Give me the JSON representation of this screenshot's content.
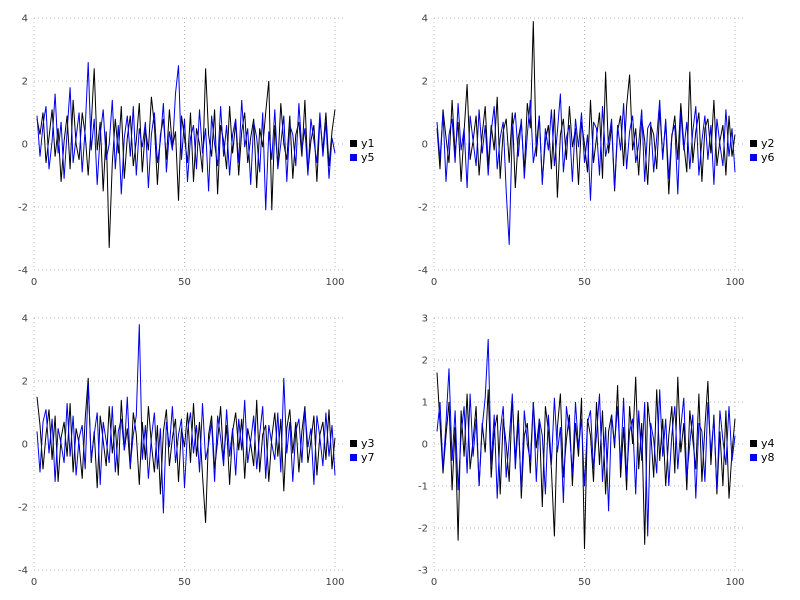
{
  "style": {
    "background": "#ffffff",
    "grid_color": "#b8b8b8",
    "tick_label_color": "#404040",
    "black_series_color": "#000000",
    "blue_series_color": "#0000ee"
  },
  "chart_data": [
    {
      "type": "line",
      "title": "",
      "xlabel": "",
      "ylabel": "",
      "xlim": [
        0,
        103
      ],
      "ylim": [
        -4,
        4
      ],
      "xticks": [
        0,
        50,
        100
      ],
      "yticks": [
        -4,
        -2,
        0,
        2,
        4
      ],
      "grid": "dotted",
      "legend_position": "right",
      "x_start": 1,
      "series": [
        {
          "name": "y1",
          "color": "#000000",
          "values": [
            0.8,
            0.3,
            1.0,
            -0.6,
            0.2,
            1.1,
            -0.4,
            0.5,
            -1.2,
            0.1,
            0.9,
            -0.8,
            1.4,
            0.0,
            -0.5,
            1.0,
            0.3,
            -1.0,
            0.6,
            2.4,
            -0.2,
            0.7,
            -1.5,
            0.4,
            -3.3,
            -0.6,
            0.8,
            -0.3,
            1.2,
            -1.1,
            0.2,
            0.9,
            -0.7,
            0.1,
            1.3,
            -0.9,
            0.5,
            -0.2,
            1.5,
            0.6,
            -1.3,
            0.3,
            0.8,
            -0.5,
            1.1,
            -0.1,
            0.4,
            -1.8,
            0.9,
            0.2,
            -0.6,
            1.0,
            -1.2,
            0.5,
            0.0,
            -0.9,
            2.4,
            0.3,
            -0.4,
            1.1,
            -1.6,
            0.6,
            0.1,
            -0.8,
            1.2,
            -0.3,
            0.7,
            -1.0,
            0.4,
            1.0,
            -0.6,
            0.2,
            0.8,
            -1.4,
            0.5,
            -0.1,
            1.0,
            2.0,
            -2.1,
            0.6,
            -0.7,
            1.3,
            0.0,
            -0.5,
            0.9,
            -1.1,
            0.3,
            0.7,
            -0.4,
            1.4,
            -0.9,
            0.1,
            0.6,
            -1.2,
            0.8,
            -0.2,
            1.0,
            -0.7,
            0.4,
            1.1
          ]
        },
        {
          "name": "y5",
          "color": "#0000ee",
          "values": [
            0.9,
            -0.4,
            0.6,
            1.2,
            -0.8,
            0.1,
            1.6,
            -0.3,
            0.7,
            -1.1,
            0.4,
            1.8,
            -0.6,
            0.2,
            1.0,
            -0.9,
            0.5,
            2.6,
            -0.2,
            0.8,
            -1.3,
            0.3,
            1.1,
            -0.5,
            0.0,
            1.4,
            -0.8,
            0.6,
            -1.6,
            0.2,
            0.9,
            -0.4,
            1.2,
            -1.0,
            0.5,
            -0.1,
            0.7,
            -1.4,
            0.3,
            1.0,
            -0.6,
            0.1,
            1.3,
            -0.9,
            0.4,
            -0.2,
            1.6,
            2.5,
            -0.5,
            0.8,
            -1.2,
            0.2,
            0.6,
            -0.8,
            1.1,
            -0.3,
            0.5,
            -1.5,
            0.9,
            0.0,
            -0.7,
            1.2,
            -0.4,
            0.6,
            -1.0,
            0.3,
            0.8,
            -0.6,
            1.4,
            -0.1,
            0.5,
            -1.3,
            0.7,
            0.2,
            -0.9,
            1.0,
            -2.1,
            0.4,
            -0.5,
            1.1,
            -0.8,
            0.0,
            0.9,
            -1.2,
            0.6,
            0.3,
            -0.7,
            1.3,
            -0.2,
            0.5,
            -1.0,
            0.8,
            0.1,
            -0.6,
            1.0,
            -0.4,
            0.7,
            -1.1,
            0.2,
            -0.3
          ]
        }
      ]
    },
    {
      "type": "line",
      "title": "",
      "xlabel": "",
      "ylabel": "",
      "xlim": [
        0,
        103
      ],
      "ylim": [
        -4,
        4
      ],
      "xticks": [
        0,
        50,
        100
      ],
      "yticks": [
        -4,
        -2,
        0,
        2,
        4
      ],
      "grid": "dotted",
      "legend_position": "right",
      "x_start": 1,
      "series": [
        {
          "name": "y2",
          "color": "#000000",
          "values": [
            0.5,
            -0.8,
            1.1,
            0.2,
            -0.6,
            1.4,
            -0.3,
            0.7,
            -1.2,
            0.4,
            1.9,
            -0.5,
            0.1,
            0.9,
            -1.0,
            0.3,
            1.2,
            -0.7,
            0.6,
            -0.2,
            1.5,
            -1.1,
            0.4,
            0.8,
            -0.6,
            1.0,
            -1.4,
            0.2,
            0.7,
            -0.9,
            1.3,
            0.5,
            3.9,
            -0.4,
            0.9,
            -1.2,
            0.1,
            0.6,
            -0.8,
            1.1,
            -1.7,
            0.3,
            0.8,
            -0.5,
            1.2,
            -0.1,
            0.5,
            -1.3,
            0.7,
            0.0,
            -0.9,
            1.4,
            -0.6,
            0.2,
            1.0,
            -1.1,
            2.3,
            -0.3,
            0.6,
            -1.5,
            0.4,
            0.9,
            -0.7,
            1.2,
            2.2,
            -0.2,
            0.5,
            -1.0,
            0.8,
            0.1,
            -1.3,
            0.6,
            0.3,
            -0.8,
            1.1,
            -0.4,
            0.7,
            -1.6,
            0.2,
            0.9,
            -0.5,
            1.3,
            0.0,
            -0.9,
            2.3,
            -0.6,
            0.4,
            1.0,
            -1.2,
            0.5,
            0.8,
            -0.3,
            1.4,
            -0.7,
            0.1,
            0.6,
            -1.0,
            0.9,
            -0.4,
            0.3
          ]
        },
        {
          "name": "y6",
          "color": "#0000ee",
          "values": [
            0.7,
            -0.5,
            1.0,
            -1.2,
            0.3,
            0.8,
            -0.6,
            1.3,
            -0.2,
            0.5,
            -1.4,
            0.9,
            0.1,
            -0.7,
            1.1,
            -0.3,
            0.6,
            -1.0,
            0.4,
            1.2,
            -0.8,
            0.2,
            0.7,
            -1.5,
            -3.2,
            0.5,
            1.0,
            -0.4,
            0.8,
            -1.1,
            0.3,
            1.4,
            -0.6,
            0.0,
            0.9,
            -1.3,
            0.5,
            -0.2,
            1.1,
            -0.7,
            0.4,
            1.6,
            -0.9,
            0.2,
            0.6,
            -1.2,
            0.8,
            -0.1,
            1.0,
            -0.6,
            0.3,
            -1.8,
            0.7,
            0.5,
            -1.0,
            1.2,
            -0.4,
            0.1,
            0.8,
            -1.4,
            0.6,
            -0.2,
            1.3,
            -0.8,
            0.4,
            0.9,
            -0.6,
            0.0,
            1.1,
            -1.2,
            0.5,
            0.7,
            -0.9,
            0.2,
            1.4,
            -0.5,
            0.8,
            -1.1,
            0.3,
            0.6,
            -1.6,
            1.0,
            -0.2,
            0.7,
            -0.8,
            0.4,
            1.2,
            -1.0,
            0.1,
            0.9,
            -0.5,
            0.6,
            -1.3,
            0.8,
            0.0,
            -0.7,
            1.1,
            -0.4,
            0.5,
            -0.9
          ]
        }
      ]
    },
    {
      "type": "line",
      "title": "",
      "xlabel": "",
      "ylabel": "",
      "xlim": [
        0,
        103
      ],
      "ylim": [
        -4,
        4
      ],
      "xticks": [
        0,
        50,
        100
      ],
      "yticks": [
        -4,
        -2,
        0,
        2,
        4
      ],
      "grid": "dotted",
      "legend_position": "right",
      "x_start": 1,
      "series": [
        {
          "name": "y3",
          "color": "#000000",
          "values": [
            1.5,
            0.6,
            -0.8,
            0.3,
            1.1,
            -0.5,
            0.9,
            -1.2,
            0.2,
            0.7,
            -0.4,
            1.3,
            -0.9,
            0.5,
            0.0,
            -1.1,
            0.8,
            2.1,
            -0.6,
            0.4,
            -1.4,
            0.9,
            0.1,
            -0.7,
            1.2,
            -0.3,
            0.6,
            -1.0,
            1.4,
            -0.2,
            0.5,
            -0.8,
            1.0,
            0.3,
            -1.3,
            0.7,
            -0.5,
            1.2,
            0.0,
            -0.9,
            0.6,
            -1.6,
            0.4,
            1.1,
            -0.7,
            0.2,
            0.8,
            -1.2,
            0.5,
            -0.1,
            1.0,
            -0.6,
            1.3,
            -0.4,
            0.7,
            -1.0,
            -2.5,
            0.3,
            0.9,
            -0.8,
            0.1,
            1.2,
            -0.5,
            0.6,
            -1.3,
            0.4,
            1.0,
            -0.2,
            0.8,
            -1.1,
            0.5,
            0.0,
            -0.7,
            1.4,
            -0.9,
            0.3,
            0.6,
            -1.2,
            0.2,
            1.0,
            -0.4,
            0.8,
            -1.5,
            0.5,
            1.1,
            -0.3,
            0.7,
            -0.9,
            0.4,
            1.2,
            -0.6,
            0.1,
            0.9,
            -1.0,
            0.3,
            0.7,
            -0.5,
            1.1,
            -0.8,
            0.2
          ]
        },
        {
          "name": "y7",
          "color": "#0000ee",
          "values": [
            0.4,
            -0.9,
            0.7,
            1.1,
            -0.3,
            0.8,
            -1.2,
            0.5,
            0.0,
            -0.6,
            1.3,
            -0.4,
            0.9,
            -1.0,
            0.2,
            0.6,
            -0.8,
            1.9,
            -0.5,
            0.3,
            1.0,
            -1.3,
            0.7,
            0.1,
            -0.6,
            1.2,
            -0.9,
            0.4,
            0.8,
            -0.2,
            1.5,
            -0.7,
            0.3,
            0.9,
            3.8,
            -0.5,
            0.6,
            -1.1,
            0.2,
            1.0,
            -0.8,
            0.5,
            -2.2,
            0.7,
            -0.1,
            1.2,
            -0.6,
            0.3,
            0.8,
            -1.4,
            0.4,
            1.0,
            -0.3,
            0.6,
            -0.9,
            1.3,
            -0.5,
            0.0,
            0.7,
            -1.2,
            0.9,
            0.2,
            -0.7,
            1.1,
            -0.4,
            0.5,
            -1.0,
            0.8,
            -0.2,
            1.4,
            -0.6,
            0.1,
            0.9,
            -0.8,
            0.3,
            1.2,
            -1.1,
            0.6,
            0.0,
            -0.5,
            1.0,
            -0.9,
            2.1,
            -0.3,
            0.7,
            -1.2,
            0.4,
            0.8,
            -0.6,
            1.1,
            -0.1,
            0.5,
            -1.3,
            0.9,
            0.2,
            -0.7,
            1.0,
            -0.4,
            0.6,
            -1.0
          ]
        }
      ]
    },
    {
      "type": "line",
      "title": "",
      "xlabel": "",
      "ylabel": "",
      "xlim": [
        0,
        103
      ],
      "ylim": [
        -3,
        3
      ],
      "xticks": [
        0,
        50,
        100
      ],
      "yticks": [
        -3,
        -2,
        -1,
        0,
        1,
        2,
        3
      ],
      "grid": "dotted",
      "legend_position": "right",
      "x_start": 1,
      "series": [
        {
          "name": "y4",
          "color": "#000000",
          "values": [
            1.7,
            0.5,
            -0.7,
            0.2,
            1.0,
            -1.1,
            0.4,
            -2.3,
            0.8,
            -0.3,
            1.2,
            -0.6,
            0.1,
            0.9,
            -1.0,
            0.5,
            -0.2,
            1.3,
            -0.8,
            0.3,
            0.7,
            -1.2,
            0.6,
            0.0,
            -0.9,
            1.1,
            -0.4,
            0.8,
            -1.3,
            0.2,
            0.5,
            -0.7,
            1.0,
            -0.1,
            0.6,
            -1.5,
            0.9,
            0.3,
            -0.6,
            -2.2,
            0.4,
            1.2,
            -0.8,
            0.1,
            0.7,
            -1.0,
            0.5,
            -0.3,
            1.1,
            -2.5,
            0.6,
            0.2,
            -0.9,
            1.0,
            -0.5,
            0.8,
            -1.2,
            0.3,
            0.7,
            -0.1,
            1.4,
            -0.8,
            0.4,
            -1.1,
            0.9,
            0.0,
            1.6,
            -0.6,
            0.5,
            -2.4,
            1.0,
            0.3,
            -0.8,
            1.3,
            -0.4,
            0.6,
            -1.0,
            0.2,
            0.9,
            -0.7,
            1.6,
            -0.2,
            0.5,
            -1.1,
            0.8,
            0.1,
            -0.6,
            1.2,
            -0.9,
            0.4,
            1.5,
            -0.5,
            0.7,
            -1.2,
            0.3,
            -1.0,
            0.8,
            -1.3,
            -0.2,
            0.6
          ]
        },
        {
          "name": "y8",
          "color": "#0000ee",
          "values": [
            0.3,
            1.0,
            -0.6,
            0.5,
            1.8,
            -0.4,
            0.8,
            -1.1,
            0.2,
            0.9,
            -0.7,
            1.2,
            -0.3,
            0.6,
            -1.0,
            0.4,
            1.1,
            2.5,
            -0.5,
            0.7,
            -1.3,
            0.3,
            0.9,
            -0.8,
            0.1,
            1.2,
            -0.6,
            0.5,
            -1.1,
            0.8,
            0.0,
            -0.4,
            1.0,
            -0.9,
            0.6,
            0.2,
            -1.2,
            0.7,
            -0.5,
            1.1,
            -0.2,
            0.4,
            -1.4,
            0.9,
            0.3,
            -0.7,
            1.0,
            -0.1,
            0.6,
            -1.0,
            0.5,
            0.8,
            -0.6,
            0.2,
            1.2,
            -0.9,
            0.4,
            -1.6,
            0.7,
            0.0,
            0.9,
            -0.5,
            1.1,
            -0.8,
            0.3,
            0.6,
            -1.2,
            0.8,
            -0.4,
            1.0,
            -2.2,
            0.5,
            0.1,
            -0.7,
            1.3,
            -0.3,
            0.6,
            -1.0,
            0.2,
            0.9,
            -0.6,
            0.4,
            1.1,
            -0.8,
            0.0,
            0.7,
            -1.3,
            0.5,
            0.3,
            -0.9,
            1.0,
            -0.2,
            0.6,
            -1.1,
            0.8,
            0.1,
            -0.5,
            0.9,
            -0.4,
            0.2
          ]
        }
      ]
    }
  ]
}
